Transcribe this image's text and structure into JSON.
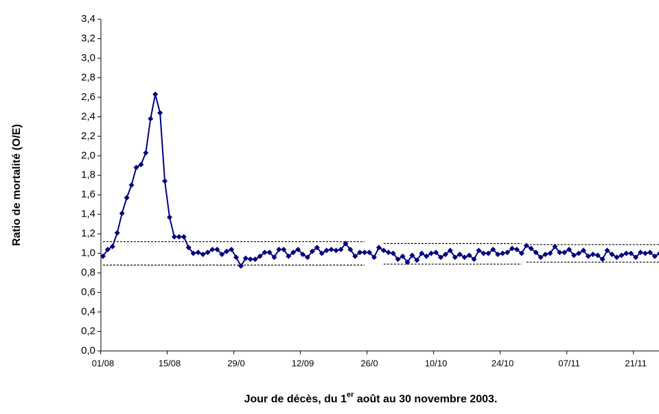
{
  "chart_data": {
    "type": "line",
    "y_label": "Ratio de mortalité (O/E)",
    "x_label": {
      "before": "Jour de décès, du 1",
      "sup": "er",
      "after": " août au 30 novembre 2003."
    },
    "categories": [
      "01/08",
      null,
      null,
      null,
      null,
      null,
      null,
      null,
      null,
      null,
      null,
      null,
      null,
      null,
      "15/08",
      null,
      null,
      null,
      null,
      null,
      null,
      null,
      null,
      null,
      null,
      null,
      null,
      null,
      "29/0",
      null,
      null,
      null,
      null,
      null,
      null,
      null,
      null,
      null,
      null,
      null,
      null,
      null,
      "12/09",
      null,
      null,
      null,
      null,
      null,
      null,
      null,
      null,
      null,
      null,
      null,
      null,
      null,
      "26/0",
      null,
      null,
      null,
      null,
      null,
      null,
      null,
      null,
      null,
      null,
      null,
      null,
      null,
      "10/10",
      null,
      null,
      null,
      null,
      null,
      null,
      null,
      null,
      null,
      null,
      null,
      null,
      null,
      "24/10",
      null,
      null,
      null,
      null,
      null,
      null,
      null,
      null,
      null,
      null,
      null,
      null,
      null,
      "07/11",
      null,
      null,
      null,
      null,
      null,
      null,
      null,
      null,
      null,
      null,
      null,
      null,
      null,
      "21/11",
      null,
      null,
      null,
      null,
      null,
      null,
      null,
      null,
      null
    ],
    "series": [
      {
        "color": "#000080",
        "values": [
          0.97,
          1.04,
          1.07,
          1.21,
          1.41,
          1.57,
          1.7,
          1.88,
          1.91,
          2.03,
          2.38,
          2.63,
          2.44,
          1.74,
          1.37,
          1.17,
          1.17,
          1.17,
          1.06,
          1.0,
          1.01,
          0.99,
          1.01,
          1.04,
          1.04,
          0.99,
          1.02,
          1.04,
          0.96,
          0.87,
          0.95,
          0.94,
          0.94,
          0.97,
          1.01,
          1.01,
          0.96,
          1.04,
          1.04,
          0.97,
          1.01,
          1.04,
          0.99,
          0.96,
          1.02,
          1.06,
          1.0,
          1.03,
          1.04,
          1.03,
          1.04,
          1.1,
          1.04,
          0.97,
          1.01,
          1.01,
          1.01,
          0.96,
          1.06,
          1.03,
          1.01,
          1.0,
          0.94,
          0.97,
          0.91,
          0.98,
          0.93,
          1.0,
          0.97,
          1.0,
          1.01,
          0.96,
          0.99,
          1.03,
          0.96,
          0.99,
          0.96,
          0.98,
          0.94,
          1.03,
          1.0,
          1.0,
          1.04,
          0.99,
          1.0,
          1.01,
          1.05,
          1.04,
          1.0,
          1.08,
          1.05,
          1.01,
          0.96,
          0.99,
          1.0,
          1.07,
          1.01,
          1.01,
          1.04,
          0.98,
          1.0,
          1.03,
          0.97,
          0.99,
          0.98,
          0.94,
          1.03,
          0.99,
          0.96,
          0.98,
          1.0,
          1.0,
          0.96,
          1.01,
          1.0,
          1.01,
          0.97,
          1.0,
          1.01,
          1.01,
          1.04,
          1.0
        ]
      }
    ],
    "limits": [
      {
        "start": 0,
        "end": 55,
        "upper": 1.12,
        "lower": 0.88
      },
      {
        "start": 59,
        "end": 88,
        "upper": 1.1,
        "lower": 0.89
      },
      {
        "start": 89,
        "end": 121,
        "upper": 1.09,
        "lower": 0.91
      }
    ],
    "ylim": [
      0,
      3.4
    ],
    "yticks": [
      {
        "value": 0,
        "label": "0,0"
      },
      {
        "value": 0.2,
        "label": "0,2"
      },
      {
        "value": 0.4,
        "label": "0,4"
      },
      {
        "value": 0.6,
        "label": "0,6"
      },
      {
        "value": 0.8,
        "label": "0,8"
      },
      {
        "value": 1.0,
        "label": "1,0"
      },
      {
        "value": 1.2,
        "label": "1,2"
      },
      {
        "value": 1.4,
        "label": "1,4"
      },
      {
        "value": 1.6,
        "label": "1,6"
      },
      {
        "value": 1.8,
        "label": "1,8"
      },
      {
        "value": 2.0,
        "label": "2,0"
      },
      {
        "value": 2.2,
        "label": "2,2"
      },
      {
        "value": 2.4,
        "label": "2,4"
      },
      {
        "value": 2.6,
        "label": "2,6"
      },
      {
        "value": 2.8,
        "label": "2,8"
      },
      {
        "value": 3.0,
        "label": "3,0"
      },
      {
        "value": 3.2,
        "label": "3,2"
      },
      {
        "value": 3.4,
        "label": "3,4"
      }
    ]
  }
}
